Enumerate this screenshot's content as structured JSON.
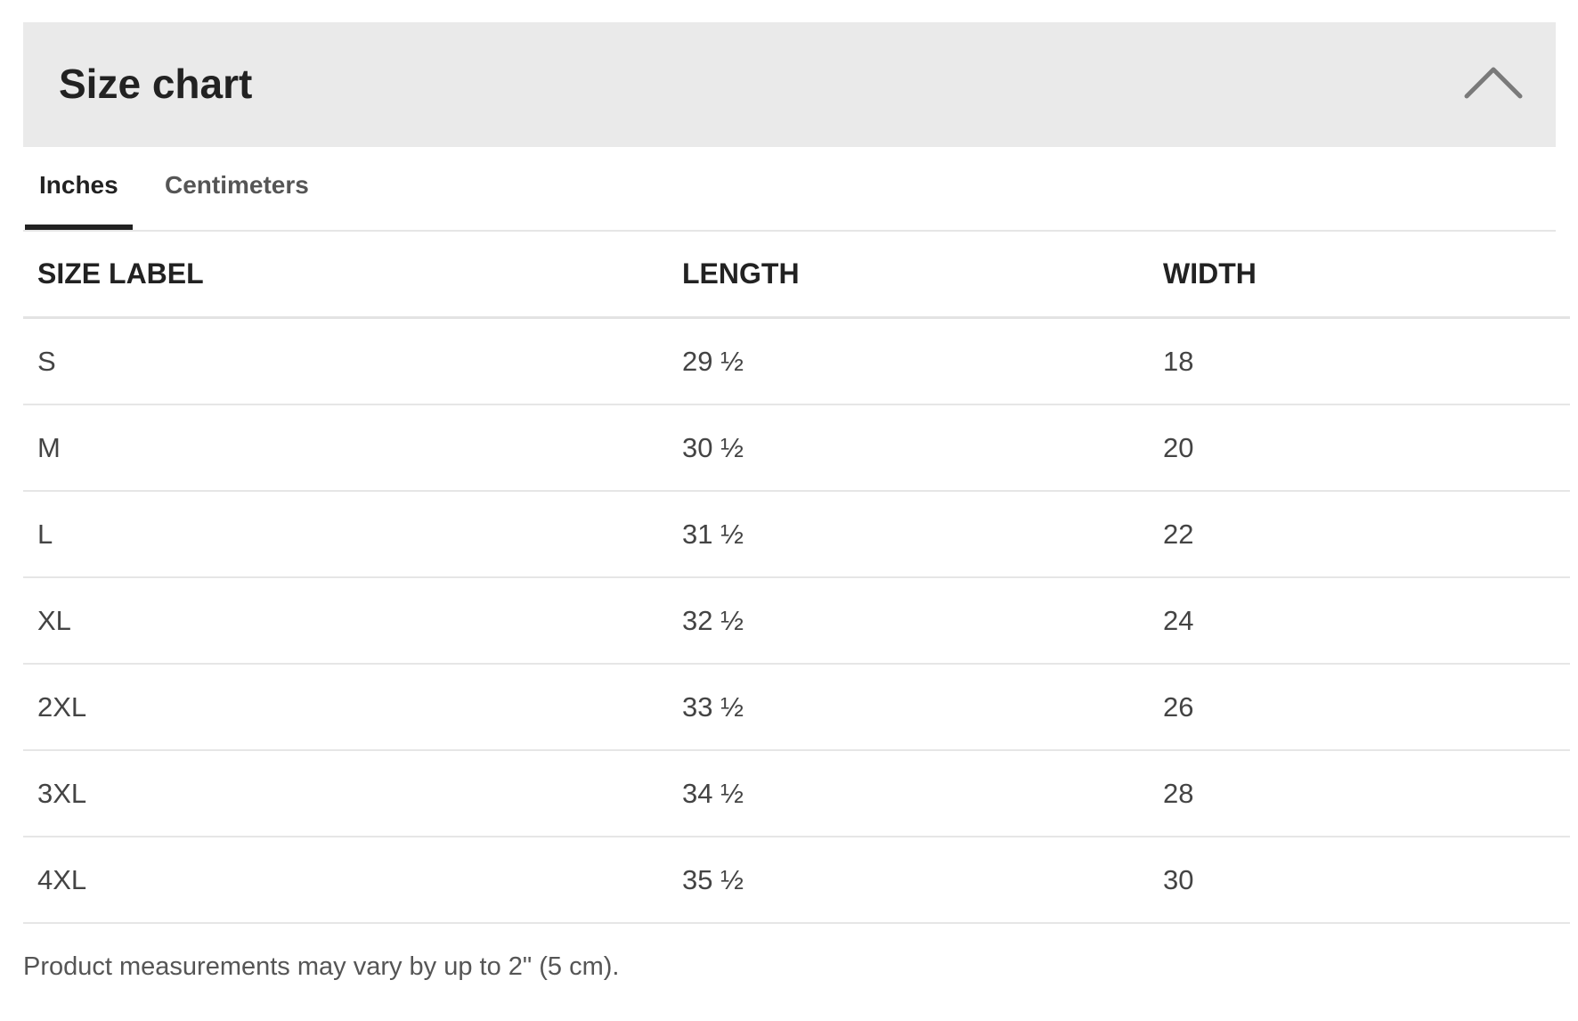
{
  "header": {
    "title": "Size chart",
    "collapse_icon": "chevron-up-icon"
  },
  "tabs": [
    {
      "label": "Inches",
      "active": true
    },
    {
      "label": "Centimeters",
      "active": false
    }
  ],
  "table": {
    "columns": [
      "SIZE LABEL",
      "LENGTH",
      "WIDTH"
    ],
    "rows": [
      [
        "S",
        "29 ½",
        "18"
      ],
      [
        "M",
        "30 ½",
        "20"
      ],
      [
        "L",
        "31 ½",
        "22"
      ],
      [
        "XL",
        "32 ½",
        "24"
      ],
      [
        "2XL",
        "33 ½",
        "26"
      ],
      [
        "3XL",
        "34 ½",
        "28"
      ],
      [
        "4XL",
        "35 ½",
        "30"
      ]
    ]
  },
  "note": "Product measurements may vary by up to 2\" (5 cm).",
  "colors": {
    "header_bg": "#eaeaea",
    "active_tab_underline": "#222222",
    "text_dark": "#222222",
    "text_body": "#444444",
    "divider": "#e6e6e6"
  }
}
